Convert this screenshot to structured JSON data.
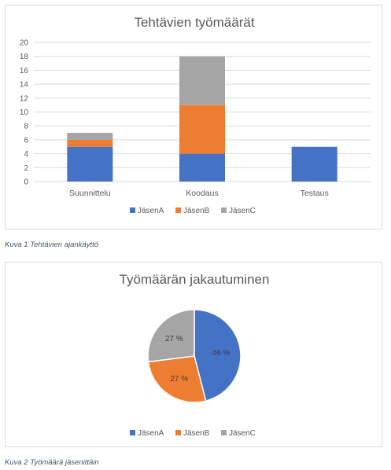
{
  "charts": [
    {
      "type": "bar",
      "stacked": true,
      "title": "Tehtävien työmäärät",
      "categories": [
        "Suunnittelu",
        "Koodaus",
        "Testaus"
      ],
      "series": [
        {
          "name": "JäsenA",
          "color": "#4472c4",
          "values": [
            5,
            4,
            5
          ]
        },
        {
          "name": "JäsenB",
          "color": "#ed7d31",
          "values": [
            1,
            7,
            0
          ]
        },
        {
          "name": "JäsenC",
          "color": "#a5a5a5",
          "values": [
            1,
            7,
            0
          ]
        }
      ],
      "ylim": [
        0,
        20
      ],
      "yticks": [
        0,
        2,
        4,
        6,
        8,
        10,
        12,
        14,
        16,
        18,
        20
      ],
      "grid": true,
      "legend": "bottom"
    },
    {
      "type": "pie",
      "title": "Työmäärän jakautuminen",
      "slices": [
        {
          "name": "JäsenA",
          "color": "#4472c4",
          "value": 46,
          "label": "46 %"
        },
        {
          "name": "JäsenB",
          "color": "#ed7d31",
          "value": 27,
          "label": "27 %"
        },
        {
          "name": "JäsenC",
          "color": "#a5a5a5",
          "value": 27,
          "label": "27 %"
        }
      ],
      "legend": "bottom"
    }
  ],
  "captions": {
    "chart1": "Kuva 1 Tehtävien ajankäyttö",
    "chart2": "Kuva 2 Työmäärä jäsenittäin"
  }
}
